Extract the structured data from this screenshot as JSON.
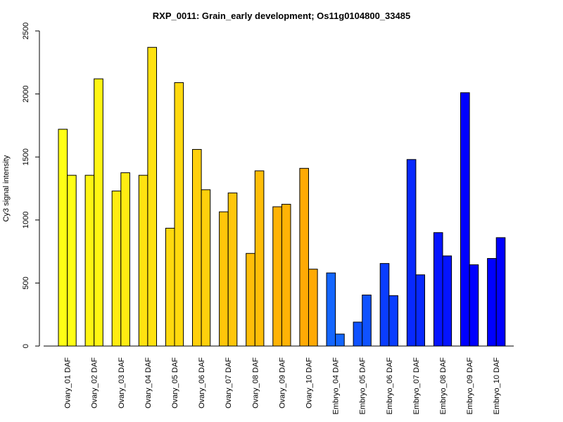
{
  "chart_data": {
    "type": "bar",
    "title": "RXP_0011: Grain_early development; Os11g0104800_33485",
    "xlabel": "",
    "ylabel": "Cy3 signal intensity",
    "ylim": [
      0,
      2500
    ],
    "yticks": [
      0,
      500,
      1000,
      1500,
      2000,
      2500
    ],
    "grid": false,
    "legend": "none",
    "categories": [
      "Ovary_01 DAF",
      "Ovary_02 DAF",
      "Ovary_03 DAF",
      "Ovary_04 DAF",
      "Ovary_05 DAF",
      "Ovary_06 DAF",
      "Ovary_07 DAF",
      "Ovary_08 DAF",
      "Ovary_09 DAF",
      "Ovary_10 DAF",
      "Embryo_04 DAF",
      "Embryo_05 DAF",
      "Embryo_06 DAF",
      "Embryo_07 DAF",
      "Embryo_08 DAF",
      "Embryo_09 DAF",
      "Embryo_10 DAF"
    ],
    "series": [
      {
        "values": [
          1720,
          1355,
          1230,
          1355,
          935,
          1560,
          1065,
          735,
          1105,
          1410,
          580,
          190,
          655,
          1480,
          900,
          2010,
          695
        ]
      },
      {
        "values": [
          1355,
          2120,
          1375,
          2370,
          2090,
          1240,
          1215,
          1390,
          1125,
          610,
          95,
          405,
          400,
          565,
          715,
          645,
          860
        ]
      }
    ],
    "bar_colors": [
      "#FFFF15",
      "#FFF513",
      "#FFEC12",
      "#FFE210",
      "#FFD90E",
      "#FFD00C",
      "#FFC60A",
      "#FFBD08",
      "#FFB306",
      "#FFAA05",
      "#1466FF",
      "#0F52FF",
      "#0A3DFF",
      "#0829FF",
      "#0514FF",
      "#0000FF",
      "#0000FF"
    ],
    "gridline": false
  }
}
